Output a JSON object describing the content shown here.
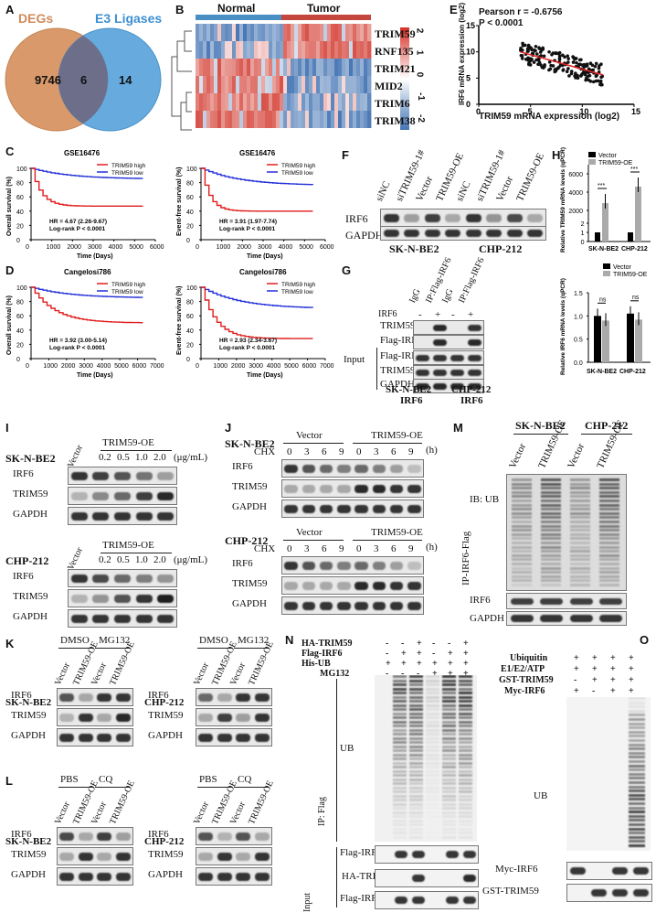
{
  "panelA": {
    "label": "A",
    "left_set": "DEGs",
    "right_set": "E3 Ligases",
    "left_only": "9746",
    "overlap": "6",
    "right_only": "14"
  },
  "panelB": {
    "label": "B",
    "group1": "Normal",
    "group2": "Tumor",
    "genes": [
      "TRIM59",
      "RNF135",
      "TRIM21",
      "MID2",
      "TRIM6",
      "TRIM38"
    ],
    "scale_ticks": [
      "2",
      "1",
      "0",
      "-1",
      "-2"
    ]
  },
  "panelE": {
    "label": "E",
    "stat_line1": "Pearson r = -0.6756",
    "stat_line2": "P < 0.0001",
    "xlabel": "TRIM59 mRNA expression (log2)",
    "ylabel": "IRF6 mRNA expression (log2)",
    "xticks": [
      "0",
      "5",
      "10",
      "15"
    ],
    "yticks": [
      "0",
      "5",
      "10",
      "15"
    ]
  },
  "panelC": {
    "label": "C",
    "dataset": "GSE16476",
    "left_ylabel": "Overall survival (%)",
    "right_ylabel": "Event-free survival (%)",
    "xlabel": "Time (Days)",
    "legend_high": "TRIM59 high",
    "legend_low": "TRIM59 low",
    "hr_left": "HR = 4.67 (2.26-9.67)",
    "hr_right": "HR = 3.91 (1.97-7.74)",
    "pval": "Log-rank P < 0.0001",
    "xticks": [
      "0",
      "1000",
      "2000",
      "3000",
      "4000",
      "5000",
      "6000"
    ],
    "yticks": [
      "0",
      "20",
      "40",
      "60",
      "80",
      "100"
    ]
  },
  "panelD": {
    "label": "D",
    "dataset": "Cangelosi786",
    "left_ylabel": "Overall survival (%)",
    "right_ylabel": "Event-free survival (%)",
    "xlabel": "Time (Days)",
    "legend_high": "TRIM59 high",
    "legend_low": "TRIM59 low",
    "hr_left": "HR = 3.92 (3.00-5.14)",
    "hr_right": "HR = 2.93 (2.34-3.67)",
    "pval": "Log-rank P < 0.0001",
    "xticks": [
      "0",
      "1000",
      "2000",
      "3000",
      "4000",
      "5000",
      "6000",
      "7000"
    ],
    "yticks": [
      "0",
      "20",
      "40",
      "60",
      "80",
      "100"
    ]
  },
  "panelF": {
    "label": "F",
    "lanes": [
      "siNC",
      "siTRIM59-1#",
      "Vector",
      "TRIM59-OE",
      "siNC",
      "siTRIM59-1#",
      "Vector",
      "TRIM59-OE"
    ],
    "rows": [
      "IRF6",
      "GAPDH"
    ],
    "cells": [
      "SK-N-BE2",
      "CHP-212"
    ]
  },
  "panelG": {
    "label": "G",
    "lanes": [
      "IgG",
      "IP:Flag-IRF6",
      "IgG",
      "IP:Flag-IRF6"
    ],
    "irf6_row": "IRF6",
    "signs": [
      "-",
      "+",
      "-",
      "+"
    ],
    "rows": [
      "TRIM59",
      "Flag-IRF6",
      "Flag-IRF6",
      "TRIM59",
      "GAPDH"
    ],
    "input": "Input",
    "cells": [
      "SK-N-BE2",
      "CHP-212"
    ],
    "target": "IRF6"
  },
  "panelH": {
    "label": "H",
    "legend": [
      "Vector",
      "TRIM59-OE"
    ],
    "top_ylabel": "Relative TRIM59 mRNA levels (qPCR)",
    "bottom_ylabel": "Relative IRF6 mRNA levels (qPCR)",
    "categories": [
      "SK-N-BE2",
      "CHP-212"
    ],
    "sig_top": "***",
    "sig_bottom": "ns",
    "top_yticks": [
      "0",
      "1",
      "2",
      "2000",
      "4000",
      "6000"
    ],
    "bottom_yticks": [
      "0.0",
      "0.5",
      "1.0",
      "1.5"
    ]
  },
  "chart_data": [
    {
      "type": "bar",
      "title": "",
      "ylabel": "Relative TRIM59 mRNA levels (qPCR)",
      "categories": [
        "SK-N-BE2",
        "CHP-212"
      ],
      "series": [
        {
          "name": "Vector",
          "values": [
            1,
            1
          ]
        },
        {
          "name": "TRIM59-OE",
          "values": [
            2800,
            4600
          ]
        }
      ]
    },
    {
      "type": "bar",
      "title": "",
      "ylabel": "Relative IRF6 mRNA levels (qPCR)",
      "ylim": [
        0,
        1.5
      ],
      "categories": [
        "SK-N-BE2",
        "CHP-212"
      ],
      "series": [
        {
          "name": "Vector",
          "values": [
            1.0,
            1.05
          ]
        },
        {
          "name": "TRIM59-OE",
          "values": [
            0.9,
            0.92
          ]
        }
      ]
    }
  ],
  "panelI": {
    "label": "I",
    "cells": [
      "SK-N-BE2",
      "CHP-212"
    ],
    "group": "TRIM59-OE",
    "vector": "Vector",
    "doses": [
      "0.2",
      "0.5",
      "1.0",
      "2.0"
    ],
    "unit": "(μg/mL)",
    "rows": [
      "IRF6",
      "TRIM59",
      "GAPDH"
    ]
  },
  "panelJ": {
    "label": "J",
    "cells": [
      "SK-N-BE2",
      "CHP-212"
    ],
    "groups": [
      "Vector",
      "TRIM59-OE"
    ],
    "chx": "CHX",
    "times": [
      "0",
      "3",
      "6",
      "9",
      "0",
      "3",
      "6",
      "9"
    ],
    "unit": "(h)",
    "rows": [
      "IRF6",
      "TRIM59",
      "GAPDH"
    ]
  },
  "panelM": {
    "label": "M",
    "cells": [
      "SK-N-BE2",
      "CHP-212"
    ],
    "lanes": [
      "Vector",
      "TRIM59-OE",
      "Vector",
      "TRIM59-OE"
    ],
    "ib": "IB: UB",
    "ip": "IP-IRF6-Flag",
    "rows": [
      "IRF6",
      "GAPDH"
    ]
  },
  "panelK": {
    "label": "K",
    "treat": [
      "DMSO",
      "MG132"
    ],
    "lanes": [
      "Vector",
      "TRIM59-OE",
      "Vector",
      "TRIM59-OE"
    ],
    "cells": [
      "SK-N-BE2",
      "CHP-212"
    ],
    "rows": [
      "IRF6",
      "TRIM59",
      "GAPDH"
    ]
  },
  "panelL": {
    "label": "L",
    "treat": [
      "PBS",
      "CQ"
    ],
    "lanes": [
      "Vector",
      "TRIM59-OE",
      "Vector",
      "TRIM59-OE"
    ],
    "cells": [
      "SK-N-BE2",
      "CHP-212"
    ],
    "rows": [
      "IRF6",
      "TRIM59",
      "GAPDH"
    ]
  },
  "panelN": {
    "label": "N",
    "conds": [
      "HA-TRIM59",
      "Flag-IRF6",
      "His-UB",
      "MG132"
    ],
    "signs": [
      [
        "-",
        "-",
        "+",
        "-",
        "-",
        "+"
      ],
      [
        "-",
        "+",
        "+",
        "-",
        "+",
        "+"
      ],
      [
        "+",
        "+",
        "+",
        "+",
        "+",
        "+"
      ],
      [
        "-",
        "-",
        "-",
        "+",
        "+",
        "+"
      ]
    ],
    "ip": "IP: Flag",
    "ub": "UB",
    "input": "Input",
    "rows": [
      "Flag-IRF6",
      "HA-TRIM59",
      "Flag-IRF6"
    ]
  },
  "panelO": {
    "label": "O",
    "conds": [
      "Ubiquitin",
      "E1/E2/ATP",
      "GST-TRIM59",
      "Myc-IRF6"
    ],
    "signs": [
      [
        "+",
        "+",
        "+",
        "+"
      ],
      [
        "+",
        "+",
        "+",
        "+"
      ],
      [
        "-",
        "+",
        "+",
        "+"
      ],
      [
        "+",
        "-",
        "+",
        "+"
      ]
    ],
    "ub": "UB",
    "rows": [
      "Myc-IRF6",
      "GST-TRIM59"
    ]
  }
}
